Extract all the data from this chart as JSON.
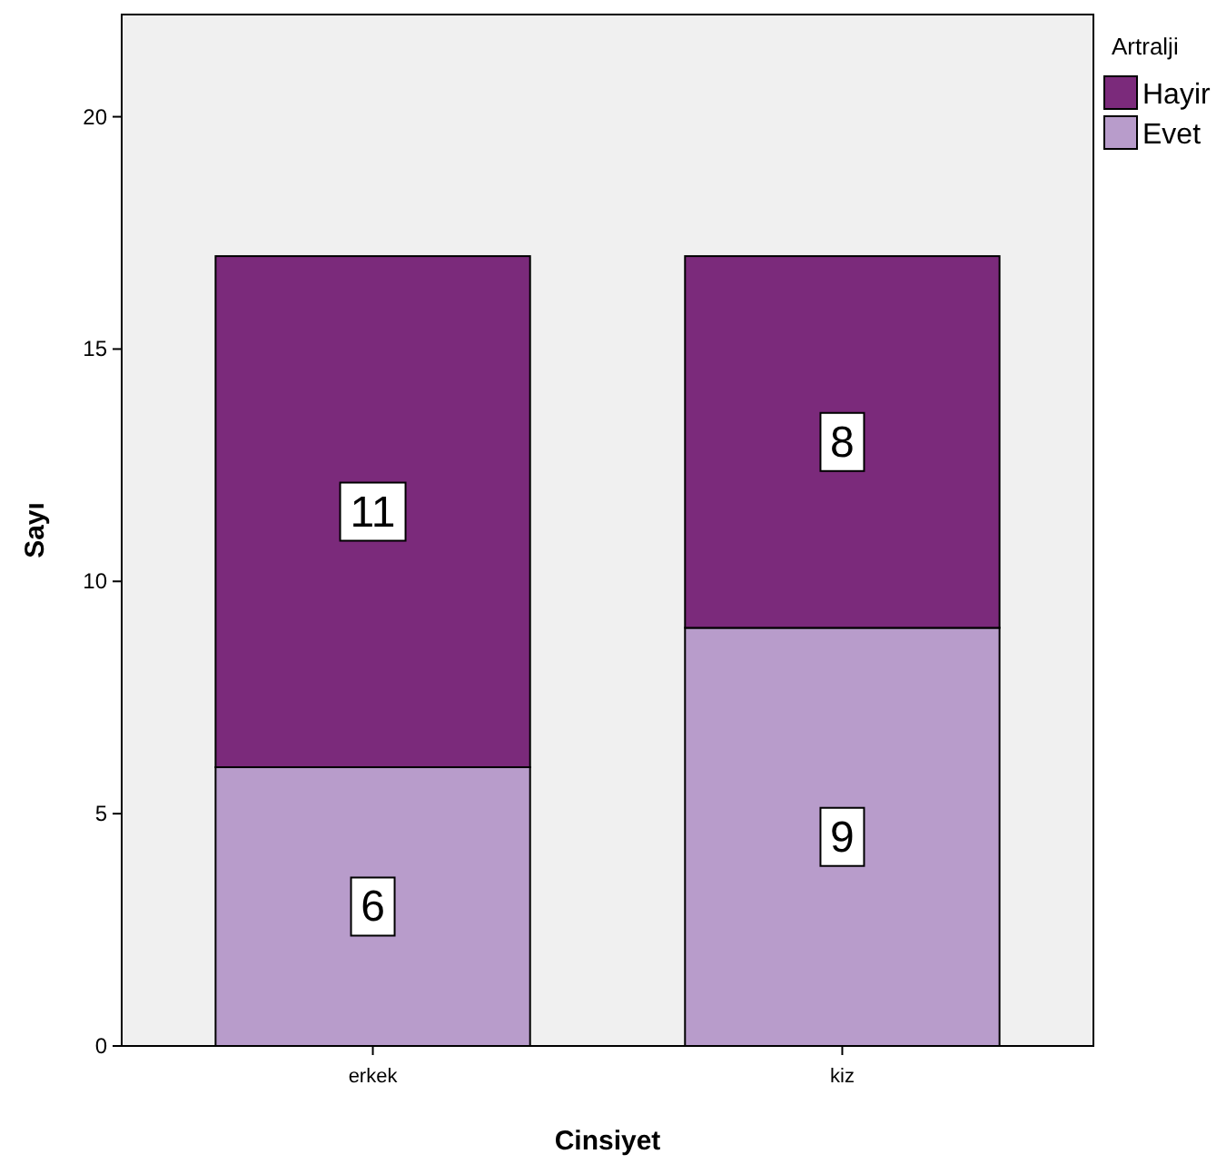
{
  "chart_data": {
    "type": "bar",
    "stacked": true,
    "xlabel": "Cinsiyet",
    "ylabel": "Sayı",
    "legend_title": "Artralji",
    "categories": [
      "erkek",
      "kiz"
    ],
    "series": [
      {
        "name": "Evet",
        "color": "#b89ccb",
        "values": [
          6,
          9
        ]
      },
      {
        "name": "Hayir",
        "color": "#7b2a7b",
        "values": [
          11,
          8
        ]
      }
    ],
    "ylim": [
      0,
      22.2
    ],
    "yticks": [
      0,
      5,
      10,
      15,
      20
    ],
    "data_labels": true,
    "legend": "top right",
    "grid": false
  }
}
